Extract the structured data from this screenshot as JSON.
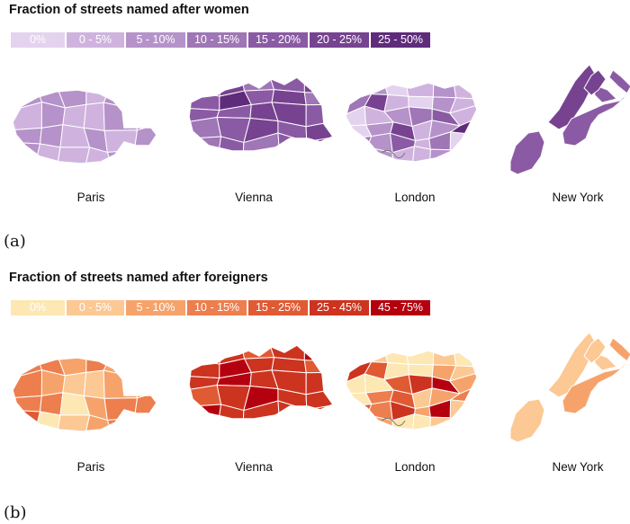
{
  "chart_data": [
    {
      "type": "choropleth",
      "title": "Fraction of streets named after women",
      "panel_label": "(a)",
      "legend": [
        {
          "label": "0%",
          "color": "#e4d3ef"
        },
        {
          "label": "0 - 5%",
          "color": "#cfb3de"
        },
        {
          "label": "5 - 10%",
          "color": "#b592c9"
        },
        {
          "label": "10 - 15%",
          "color": "#9f76b6"
        },
        {
          "label": "15 - 20%",
          "color": "#8b5aa4"
        },
        {
          "label": "20 - 25%",
          "color": "#774391"
        },
        {
          "label": "25 - 50%",
          "color": "#5f2c7b"
        }
      ],
      "cities": [
        {
          "name": "Paris",
          "regions": [
            2,
            2,
            2,
            1,
            2,
            2,
            1,
            2,
            1,
            1,
            2,
            3,
            2,
            2,
            1,
            2,
            1,
            2,
            2,
            1,
            1,
            1
          ]
        },
        {
          "name": "Vienna",
          "regions": [
            4,
            5,
            3,
            4,
            5,
            4,
            6,
            4,
            5,
            3,
            4,
            4,
            5,
            5,
            4,
            3,
            4,
            5,
            4,
            5,
            3,
            4,
            3
          ]
        },
        {
          "name": "London",
          "regions": [
            1,
            2,
            0,
            1,
            2,
            1,
            3,
            5,
            1,
            0,
            2,
            1,
            0,
            1,
            2,
            3,
            4,
            1,
            0,
            2,
            5,
            1,
            2,
            6,
            3,
            2,
            4,
            1,
            3,
            0,
            4,
            2,
            1
          ]
        },
        {
          "name": "New York",
          "regions": [
            4,
            5,
            4,
            4,
            5
          ]
        }
      ]
    },
    {
      "type": "choropleth",
      "title": "Fraction of streets named after foreigners",
      "panel_label": "(b)",
      "legend": [
        {
          "label": "0%",
          "color": "#fde7b3"
        },
        {
          "label": "0 - 5%",
          "color": "#fcc893"
        },
        {
          "label": "5 - 10%",
          "color": "#f6a36b"
        },
        {
          "label": "10 - 15%",
          "color": "#ed7e4e"
        },
        {
          "label": "15 - 25%",
          "color": "#e05a34"
        },
        {
          "label": "25 - 45%",
          "color": "#cc3420"
        },
        {
          "label": "45 - 75%",
          "color": "#b5000f"
        }
      ],
      "cities": [
        {
          "name": "Paris",
          "regions": [
            3,
            3,
            2,
            3,
            2,
            4,
            3,
            2,
            1,
            1,
            2,
            3,
            3,
            3,
            0,
            2,
            3,
            3,
            4,
            0,
            1,
            2
          ]
        },
        {
          "name": "Vienna",
          "regions": [
            5,
            5,
            4,
            5,
            6,
            5,
            6,
            5,
            5,
            4,
            5,
            6,
            5,
            5,
            5,
            4,
            5,
            6,
            5,
            5,
            6,
            5,
            5
          ]
        },
        {
          "name": "London",
          "regions": [
            0,
            1,
            0,
            0,
            1,
            0,
            5,
            4,
            0,
            0,
            2,
            1,
            0,
            0,
            4,
            5,
            6,
            2,
            0,
            3,
            4,
            1,
            2,
            3,
            4,
            3,
            5,
            2,
            6,
            1,
            3,
            2,
            0
          ]
        },
        {
          "name": "New York",
          "regions": [
            1,
            1,
            2,
            1,
            1
          ]
        }
      ]
    }
  ]
}
